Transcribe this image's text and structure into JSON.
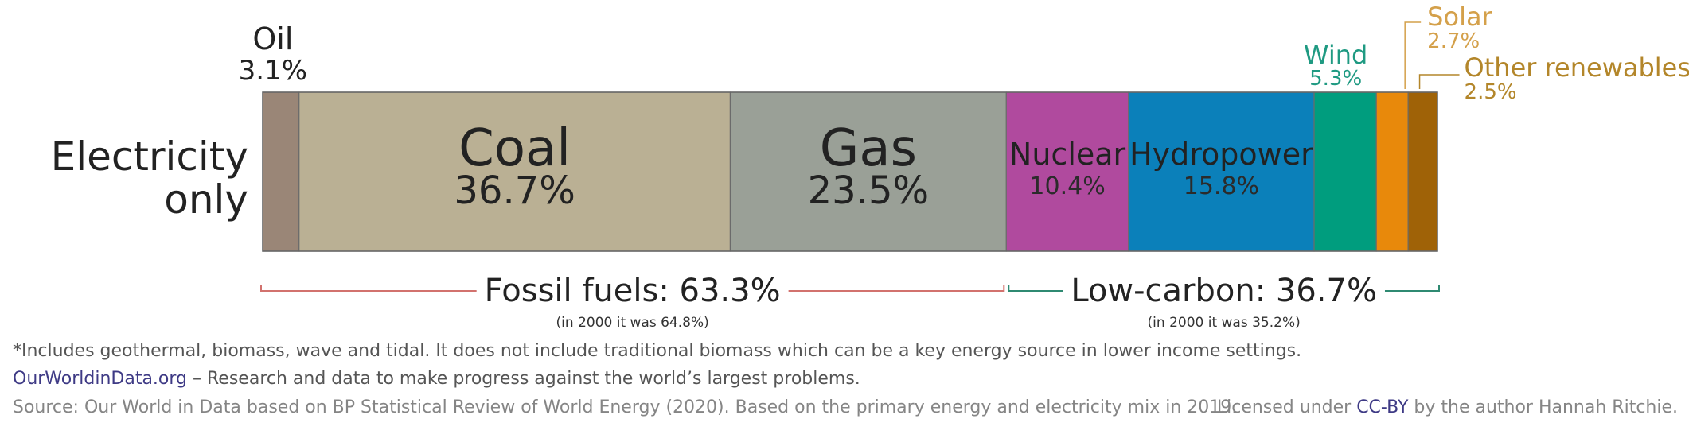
{
  "chart_data": {
    "type": "bar",
    "orientation": "horizontal-stacked",
    "category": "Electricity only",
    "segments": [
      {
        "name": "Oil",
        "value": 3.1,
        "value_label": "3.1%",
        "color": "#9a8677"
      },
      {
        "name": "Coal",
        "value": 36.7,
        "value_label": "36.7%",
        "color": "#bab094"
      },
      {
        "name": "Gas",
        "value": 23.5,
        "value_label": "23.5%",
        "color": "#9aa097"
      },
      {
        "name": "Nuclear",
        "value": 10.4,
        "value_label": "10.4%",
        "color": "#b04a9e"
      },
      {
        "name": "Hydropower",
        "value": 15.8,
        "value_label": "15.8%",
        "color": "#0b80ba"
      },
      {
        "name": "Wind",
        "value": 5.3,
        "value_label": "5.3%",
        "color": "#009d7e"
      },
      {
        "name": "Solar",
        "value": 2.7,
        "value_label": "2.7%",
        "color": "#e8890b"
      },
      {
        "name": "Other renewables*",
        "value": 2.5,
        "value_label": "2.5%",
        "color": "#9f6207"
      }
    ],
    "groups": [
      {
        "label": "Fossil fuels: 63.3%",
        "note": "(in 2000 it was 64.8%)",
        "from": 0,
        "to": 2,
        "color": "#d2726e"
      },
      {
        "label": "Low-carbon: 36.7%",
        "note": "(in 2000 it was 35.2%)",
        "from": 3,
        "to": 7,
        "color": "#2f8a72"
      }
    ],
    "xlim": [
      0,
      100
    ]
  },
  "category_lines": [
    "Electricity",
    "only"
  ],
  "footnote": "*Includes geothermal, biomass, wave and tidal. It does not include traditional biomass which can be a key energy source in lower income settings.",
  "brand": {
    "name": "OurWorldinData.org",
    "tagline": " – Research and data to make progress against the world’s largest problems."
  },
  "source": "Source: Our World in Data based on BP Statistical Review of World Energy (2020). Based on the primary energy and electricity mix in 2019.",
  "license": {
    "prefix": "Licensed under ",
    "link": "CC-BY",
    "suffix": " by the author Hannah Ritchie."
  },
  "colors": {
    "wind_label": "#1f9a82",
    "solar_label": "#d4a04a",
    "other_label": "#b3862a"
  }
}
